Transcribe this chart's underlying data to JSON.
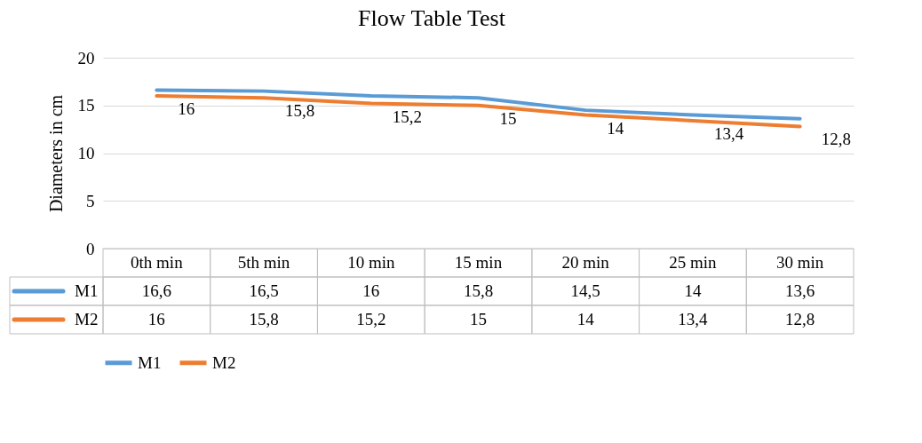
{
  "chart_data": {
    "type": "line",
    "title": "Flow Table Test",
    "ylabel": "Diameters in cm",
    "categories": [
      "0th min",
      "5th min",
      "10 min",
      "15 min",
      "20 min",
      "25 min",
      "30 min"
    ],
    "series": [
      {
        "name": "M1",
        "color": "#5b9bd5",
        "values": [
          16.6,
          16.5,
          16,
          15.8,
          14.5,
          14,
          13.6
        ],
        "value_labels": [
          "16,6",
          "16,5",
          "16",
          "15,8",
          "14,5",
          "14",
          "13,6"
        ]
      },
      {
        "name": "M2",
        "color": "#ed7d31",
        "values": [
          16,
          15.8,
          15.2,
          15,
          14,
          13.4,
          12.8
        ],
        "value_labels": [
          "16",
          "15,8",
          "15,2",
          "15",
          "14",
          "13,4",
          "12,8"
        ],
        "data_labels": true
      }
    ],
    "ylim": [
      0,
      20
    ],
    "yticks": [
      0,
      5,
      10,
      15,
      20
    ],
    "grid": "y",
    "legend": "bottom",
    "marker": "none"
  }
}
